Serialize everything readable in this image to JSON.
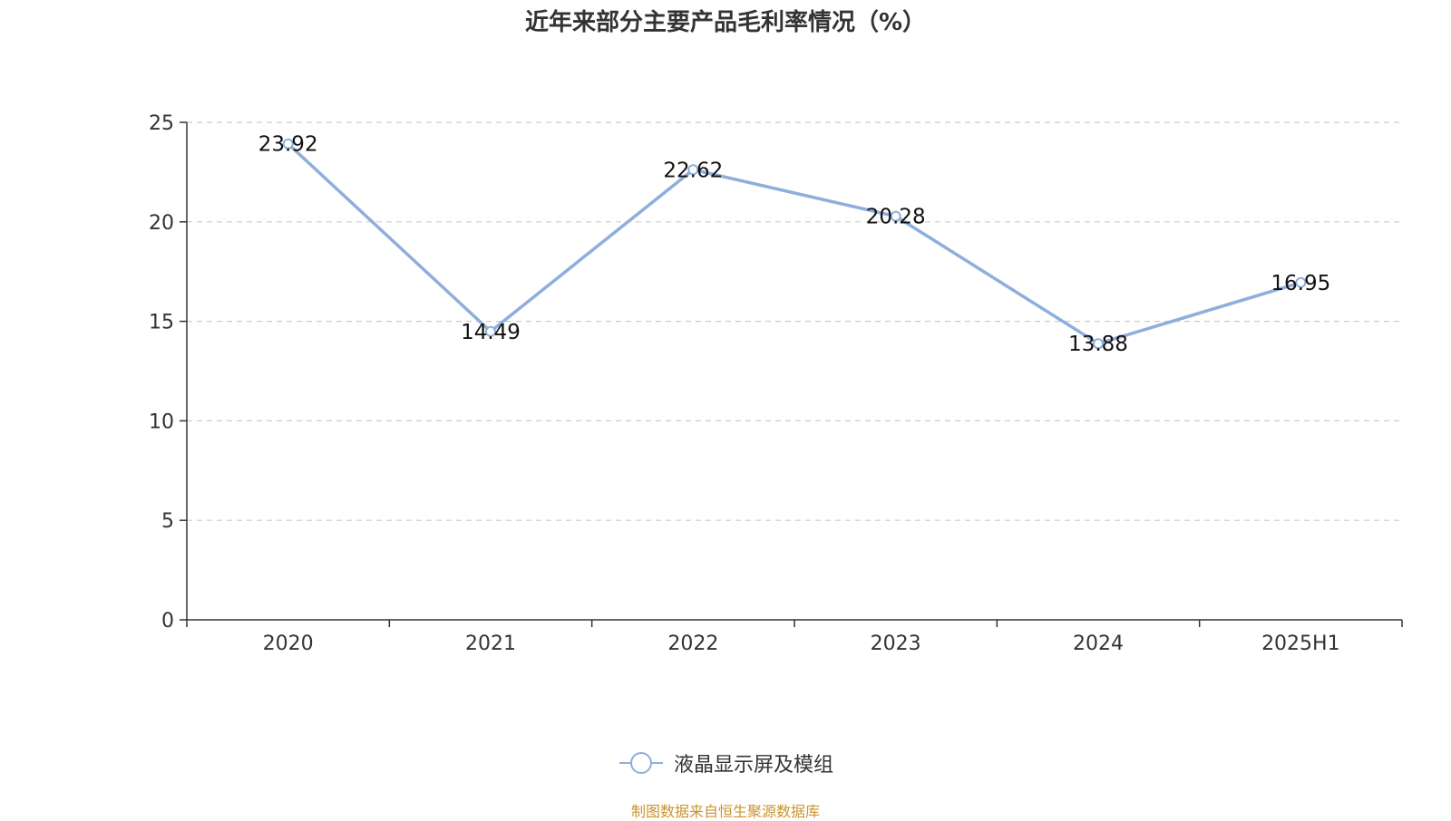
{
  "chart_data": {
    "type": "line",
    "title": "近年来部分主要产品毛利率情况（%）",
    "categories": [
      "2020",
      "2021",
      "2022",
      "2023",
      "2024",
      "2025H1"
    ],
    "series": [
      {
        "name": "液晶显示屏及模组",
        "values": [
          23.92,
          14.49,
          22.62,
          20.28,
          13.88,
          16.95
        ],
        "color": "#8eaedb"
      }
    ],
    "ylim": [
      0,
      25
    ],
    "yticks": [
      0,
      5,
      10,
      15,
      20,
      25
    ],
    "grid": true,
    "legend_position": "bottom"
  },
  "source": {
    "text": "制图数据来自恒生聚源数据库",
    "color": "#c8952c"
  }
}
